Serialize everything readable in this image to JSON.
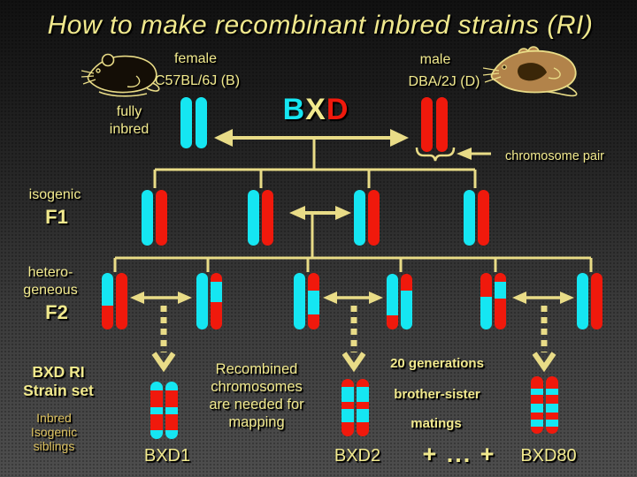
{
  "title": "How to make recombinant inbred strains (RI)",
  "colors": {
    "background_top": "#111111",
    "background_bottom": "#4e4e4e",
    "text_yellow": "#F1E98D",
    "text_gold_dim": "#DBC05E",
    "line_yellow": "#E9DC87",
    "allele_B_cyan": "#15E6F2",
    "allele_D_red": "#F0190C",
    "female_mouse_body": "#140e06",
    "male_mouse_body": "#B2834A",
    "male_mouse_patch": "#3A2608"
  },
  "parents": {
    "female": {
      "sex": "female",
      "strain": "C57BL/6J (B)",
      "state_line1": "fully",
      "state_line2": "inbred"
    },
    "male": {
      "sex": "male",
      "strain": "DBA/2J (D)"
    }
  },
  "cross": {
    "b": "B",
    "x": "X",
    "d": "D"
  },
  "annotations": {
    "chromosome_pair": "chromosome pair"
  },
  "generations": {
    "f1": {
      "adjective": "isogenic",
      "name": "F1"
    },
    "f2": {
      "adjective_line1": "hetero-",
      "adjective_line2": "geneous",
      "name": "F2"
    }
  },
  "bottom": {
    "ri_title_line1": "BXD RI",
    "ri_title_line2": "Strain set",
    "siblings_lines": [
      "Inbred",
      "Isogenic",
      "siblings"
    ],
    "note_lines": [
      "Recombined",
      "chromosomes",
      "are needed for",
      "mapping"
    ],
    "breeding_lines": [
      "20 generations",
      "brother-sister",
      "matings"
    ],
    "strains": {
      "first": "BXD1",
      "second": "BXD2",
      "ellipsis": "+ ... +",
      "last": "BXD80"
    }
  },
  "chromosome_patterns": {
    "parent_b": {
      "bars": [
        [
          {
            "allele": "B",
            "pct": 100
          }
        ],
        [
          {
            "allele": "B",
            "pct": 100
          }
        ]
      ]
    },
    "parent_d": {
      "bars": [
        [
          {
            "allele": "D",
            "pct": 100
          }
        ],
        [
          {
            "allele": "D",
            "pct": 100
          }
        ]
      ]
    },
    "f1_1": {
      "bars": [
        [
          {
            "allele": "B",
            "pct": 100
          }
        ],
        [
          {
            "allele": "D",
            "pct": 100
          }
        ]
      ]
    },
    "f1_2": {
      "bars": [
        [
          {
            "allele": "B",
            "pct": 100
          }
        ],
        [
          {
            "allele": "D",
            "pct": 100
          }
        ]
      ]
    },
    "f1_3": {
      "bars": [
        [
          {
            "allele": "B",
            "pct": 100
          }
        ],
        [
          {
            "allele": "D",
            "pct": 100
          }
        ]
      ]
    },
    "f1_4": {
      "bars": [
        [
          {
            "allele": "B",
            "pct": 100
          }
        ],
        [
          {
            "allele": "D",
            "pct": 100
          }
        ]
      ]
    },
    "f2_1": {
      "bars": [
        [
          {
            "allele": "B",
            "pct": 58
          },
          {
            "allele": "D",
            "pct": 42
          }
        ],
        [
          {
            "allele": "D",
            "pct": 100
          }
        ]
      ]
    },
    "f2_2": {
      "bars": [
        [
          {
            "allele": "B",
            "pct": 100
          }
        ],
        [
          {
            "allele": "D",
            "pct": 15
          },
          {
            "allele": "B",
            "pct": 37
          },
          {
            "allele": "D",
            "pct": 48
          }
        ]
      ]
    },
    "f2_3": {
      "bars": [
        [
          {
            "allele": "B",
            "pct": 100
          }
        ],
        [
          {
            "allele": "D",
            "pct": 31
          },
          {
            "allele": "B",
            "pct": 42
          },
          {
            "allele": "D",
            "pct": 27
          }
        ]
      ]
    },
    "f2_4": {
      "bars": [
        [
          {
            "allele": "B",
            "pct": 75
          },
          {
            "allele": "D",
            "pct": 25
          }
        ],
        [
          {
            "allele": "D",
            "pct": 30
          },
          {
            "allele": "B",
            "pct": 70
          }
        ]
      ]
    },
    "f2_5": {
      "bars": [
        [
          {
            "allele": "D",
            "pct": 42
          },
          {
            "allele": "B",
            "pct": 58
          }
        ],
        [
          {
            "allele": "D",
            "pct": 15
          },
          {
            "allele": "B",
            "pct": 30
          },
          {
            "allele": "D",
            "pct": 55
          }
        ]
      ]
    },
    "f2_6": {
      "bars": [
        [
          {
            "allele": "B",
            "pct": 100
          }
        ],
        [
          {
            "allele": "D",
            "pct": 100
          }
        ]
      ]
    },
    "bxd1": {
      "bars": [
        [
          {
            "allele": "B",
            "pct": 16
          },
          {
            "allele": "D",
            "pct": 28
          },
          {
            "allele": "B",
            "pct": 13
          },
          {
            "allele": "D",
            "pct": 28
          },
          {
            "allele": "B",
            "pct": 15
          }
        ],
        [
          {
            "allele": "B",
            "pct": 16
          },
          {
            "allele": "D",
            "pct": 28
          },
          {
            "allele": "B",
            "pct": 13
          },
          {
            "allele": "D",
            "pct": 28
          },
          {
            "allele": "B",
            "pct": 15
          }
        ]
      ]
    },
    "bxd2": {
      "bars": [
        [
          {
            "allele": "D",
            "pct": 14
          },
          {
            "allele": "B",
            "pct": 26
          },
          {
            "allele": "D",
            "pct": 13
          },
          {
            "allele": "B",
            "pct": 23
          },
          {
            "allele": "D",
            "pct": 24
          }
        ],
        [
          {
            "allele": "D",
            "pct": 14
          },
          {
            "allele": "B",
            "pct": 26
          },
          {
            "allele": "D",
            "pct": 13
          },
          {
            "allele": "B",
            "pct": 23
          },
          {
            "allele": "D",
            "pct": 24
          }
        ]
      ]
    },
    "bxd80": {
      "bars": [
        [
          {
            "allele": "D",
            "pct": 21
          },
          {
            "allele": "B",
            "pct": 12
          },
          {
            "allele": "D",
            "pct": 15
          },
          {
            "allele": "B",
            "pct": 15
          },
          {
            "allele": "D",
            "pct": 12
          },
          {
            "allele": "B",
            "pct": 13
          },
          {
            "allele": "D",
            "pct": 12
          }
        ],
        [
          {
            "allele": "D",
            "pct": 21
          },
          {
            "allele": "B",
            "pct": 12
          },
          {
            "allele": "D",
            "pct": 15
          },
          {
            "allele": "B",
            "pct": 15
          },
          {
            "allele": "D",
            "pct": 12
          },
          {
            "allele": "B",
            "pct": 13
          },
          {
            "allele": "D",
            "pct": 12
          }
        ]
      ]
    }
  }
}
